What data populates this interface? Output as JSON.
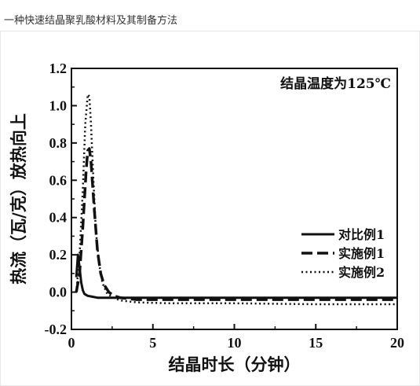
{
  "document": {
    "title": "一种快速结晶聚乳酸材料及其制备方法"
  },
  "chart_data": {
    "type": "line",
    "xlabel": "结晶时长（分钟）",
    "ylabel": "热流（瓦/克）放热向上",
    "annotation": "结晶温度为125℃",
    "xlim": [
      0,
      20
    ],
    "ylim": [
      -0.2,
      1.2
    ],
    "xticks": [
      0,
      5,
      10,
      15,
      20
    ],
    "yticks": [
      -0.2,
      0.0,
      0.2,
      0.4,
      0.6,
      0.8,
      1.0,
      1.2
    ],
    "ytick_labels": [
      "-0.2",
      "0.0",
      "0.2",
      "0.4",
      "0.6",
      "0.8",
      "1.0",
      "1.2"
    ],
    "xtick_labels": [
      "0",
      "5",
      "10",
      "15",
      "20"
    ],
    "grid": false,
    "legend_position": "right",
    "series": [
      {
        "name": "对比例1",
        "style": "solid",
        "x": [
          0.3,
          0.4,
          0.5,
          0.6,
          0.7,
          0.8,
          1.0,
          1.3,
          1.6,
          2.0,
          3.0,
          5.0,
          10.0,
          15.0,
          20.0
        ],
        "y": [
          0.08,
          0.2,
          0.13,
          0.05,
          0.01,
          -0.01,
          -0.02,
          -0.025,
          -0.03,
          -0.03,
          -0.03,
          -0.03,
          -0.03,
          -0.03,
          -0.03
        ]
      },
      {
        "name": "实施例1",
        "style": "dashed",
        "x": [
          0.3,
          0.5,
          0.7,
          0.9,
          1.0,
          1.1,
          1.2,
          1.4,
          1.6,
          1.8,
          2.0,
          2.3,
          2.6,
          3.0,
          4.0,
          6.0,
          10.0,
          15.0,
          20.0
        ],
        "y": [
          0.0,
          0.1,
          0.35,
          0.65,
          0.76,
          0.77,
          0.7,
          0.45,
          0.22,
          0.1,
          0.04,
          0.0,
          -0.02,
          -0.03,
          -0.04,
          -0.04,
          -0.04,
          -0.04,
          -0.04
        ]
      },
      {
        "name": "实施例2",
        "style": "dotted",
        "x": [
          0.3,
          0.5,
          0.7,
          0.85,
          1.0,
          1.1,
          1.2,
          1.35,
          1.5,
          1.7,
          1.9,
          2.2,
          2.6,
          3.0,
          4.0,
          6.0,
          10.0,
          15.0,
          20.0
        ],
        "y": [
          0.0,
          0.2,
          0.55,
          0.9,
          1.06,
          1.05,
          0.9,
          0.6,
          0.33,
          0.15,
          0.05,
          -0.01,
          -0.03,
          -0.045,
          -0.055,
          -0.06,
          -0.06,
          -0.065,
          -0.065
        ]
      }
    ]
  }
}
